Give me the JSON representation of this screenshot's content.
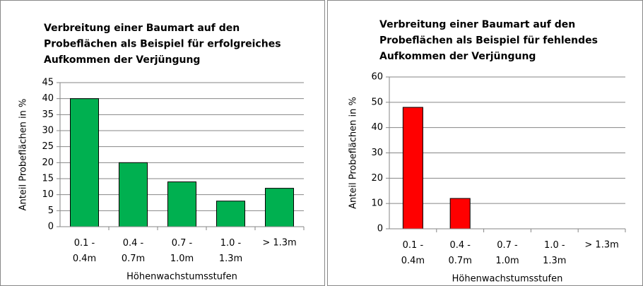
{
  "chart_data": [
    {
      "type": "bar",
      "title": [
        "Verbreitung einer Baumart auf den",
        "Probeflächen als Beispiel für erfolgreiches",
        "Aufkommen der Verjüngung"
      ],
      "xlabel": "Höhenwachstumsstufen",
      "ylabel": "Anteil  Probeflächen in %",
      "categories": [
        "0.1 - 0.4m",
        "0.4 - 0.7m",
        "0.7 - 1.0m",
        "1.0 - 1.3m",
        "> 1.3m"
      ],
      "values": [
        40,
        20,
        14,
        8,
        12
      ],
      "color": "#00b050",
      "ylim": [
        0,
        45
      ],
      "yticks": [
        0,
        5,
        10,
        15,
        20,
        25,
        30,
        35,
        40,
        45
      ],
      "grid": true
    },
    {
      "type": "bar",
      "title": [
        "Verbreitung einer Baumart auf den",
        "Probeflächen als Beispiel für fehlendes",
        "Aufkommen der Verjüngung"
      ],
      "xlabel": "Höhenwachstumsstufen",
      "ylabel": "Anteil  Probeflächen in %",
      "categories": [
        "0.1 - 0.4m",
        "0.4 - 0.7m",
        "0.7 - 1.0m",
        "1.0 - 1.3m",
        "> 1.3m"
      ],
      "values": [
        48,
        12,
        0,
        0,
        0
      ],
      "color": "#ff0000",
      "ylim": [
        0,
        60
      ],
      "yticks": [
        0,
        10,
        20,
        30,
        40,
        50,
        60
      ],
      "grid": true
    }
  ]
}
